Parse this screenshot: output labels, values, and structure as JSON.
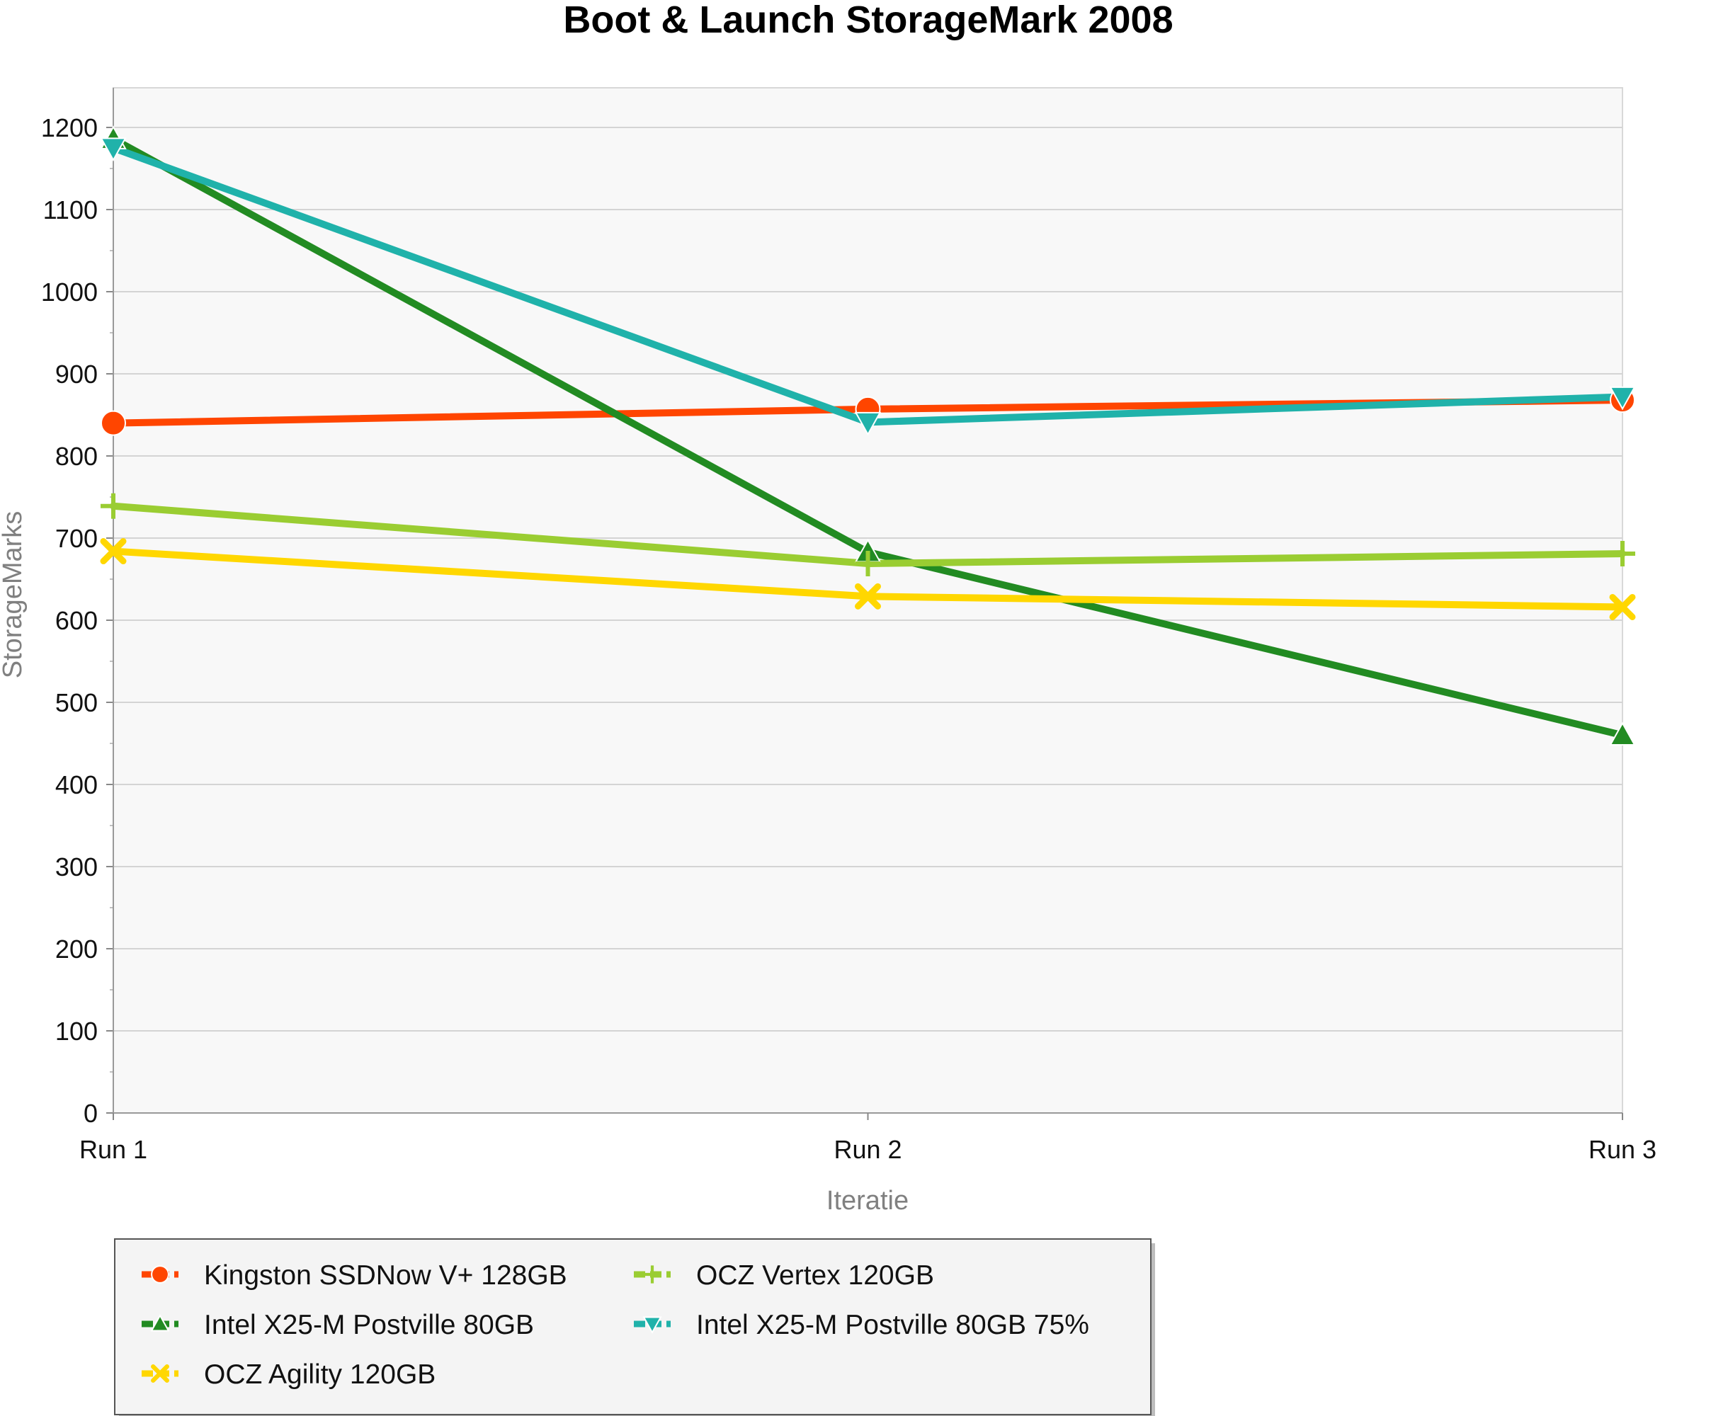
{
  "chart_data": {
    "type": "line",
    "title": "Boot & Launch StorageMark 2008",
    "xlabel": "Iteratie",
    "ylabel": "StorageMarks",
    "categories": [
      "Run 1",
      "Run 2",
      "Run 3"
    ],
    "ylim": [
      0,
      1200
    ],
    "y_ticks": [
      0,
      100,
      200,
      300,
      400,
      500,
      600,
      700,
      800,
      900,
      1000,
      1100,
      1200
    ],
    "grid": true,
    "legend_position": "bottom-left",
    "series": [
      {
        "name": "Kingston SSDNow V+ 128GB",
        "values": [
          840,
          857,
          868
        ],
        "color": "#ff4500",
        "marker": "circle"
      },
      {
        "name": "Intel X25-M Postville 80GB",
        "values": [
          1186,
          683,
          460
        ],
        "color": "#228b22",
        "marker": "triangle-up"
      },
      {
        "name": "OCZ Agility 120GB",
        "values": [
          684,
          629,
          616
        ],
        "color": "#ffd700",
        "marker": "x"
      },
      {
        "name": "OCZ Vertex 120GB",
        "values": [
          739,
          669,
          681
        ],
        "color": "#9acd32",
        "marker": "plus"
      },
      {
        "name": "Intel X25-M Postville 80GB 75%",
        "values": [
          1175,
          841,
          872
        ],
        "color": "#20b2aa",
        "marker": "triangle-down"
      }
    ]
  }
}
